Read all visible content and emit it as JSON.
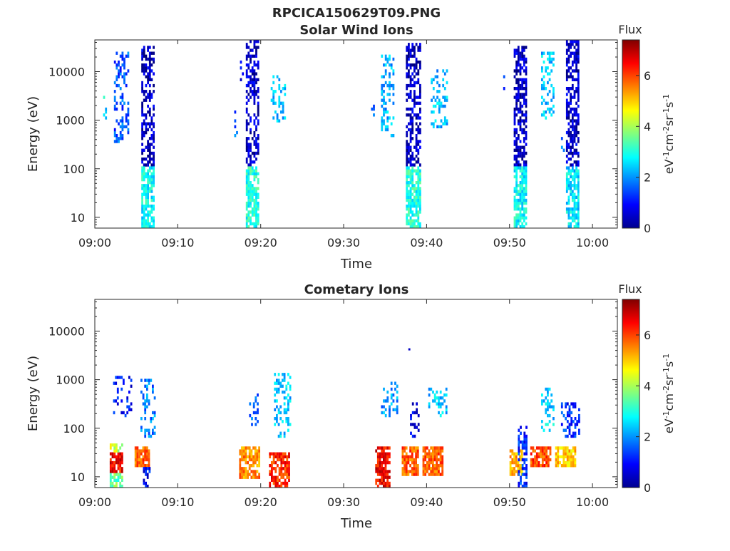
{
  "figure_title": "RPCICA150629T09.PNG",
  "chart_data": [
    {
      "type": "heatmap",
      "title": "Solar Wind Ions",
      "xlabel": "Time",
      "ylabel": "Energy (eV)",
      "x_ticks": [
        "09:00",
        "09:10",
        "09:20",
        "09:30",
        "09:40",
        "09:50",
        "10:00"
      ],
      "x_range_min": [
        0,
        63
      ],
      "y_ticks": [
        "10",
        "100",
        "1000",
        "10000"
      ],
      "y_scale": "log",
      "y_range": [
        6,
        45000
      ],
      "colorbar": {
        "label": "Flux",
        "unit": "eV-1 cm-2 sr-1 s-1",
        "ticks": [
          "0",
          "2",
          "4",
          "6"
        ],
        "range": [
          0,
          7.4
        ],
        "colormap": "jet"
      },
      "bursts": [
        {
          "start_min": 1.0,
          "end_min": 1.4,
          "emin": 1000,
          "emax": 3000,
          "level": 2.6,
          "density": 0.3
        },
        {
          "start_min": 2.3,
          "end_min": 4.0,
          "emin": 300,
          "emax": 25000,
          "level": 1.5,
          "density": 0.35
        },
        {
          "start_min": 5.6,
          "end_min": 7.0,
          "emin": 100,
          "emax": 30000,
          "level": 0.5,
          "density": 0.55
        },
        {
          "start_min": 5.6,
          "end_min": 7.0,
          "emin": 6,
          "emax": 100,
          "level": 2.8,
          "density": 0.75
        },
        {
          "start_min": 16.8,
          "end_min": 17.2,
          "emin": 200,
          "emax": 2000,
          "level": 1.5,
          "density": 0.2
        },
        {
          "start_min": 17.5,
          "end_min": 17.9,
          "emin": 5000,
          "emax": 15000,
          "level": 0.8,
          "density": 0.3
        },
        {
          "start_min": 18.2,
          "end_min": 19.8,
          "emin": 100,
          "emax": 40000,
          "level": 0.5,
          "density": 0.55
        },
        {
          "start_min": 18.2,
          "end_min": 19.8,
          "emin": 6,
          "emax": 100,
          "level": 3.0,
          "density": 0.75
        },
        {
          "start_min": 21.2,
          "end_min": 23.0,
          "emin": 800,
          "emax": 8000,
          "level": 2.4,
          "density": 0.3
        },
        {
          "start_min": 33.3,
          "end_min": 33.6,
          "emin": 1000,
          "emax": 2000,
          "level": 1.8,
          "density": 0.3
        },
        {
          "start_min": 34.5,
          "end_min": 36.0,
          "emin": 400,
          "emax": 20000,
          "level": 2.2,
          "density": 0.35
        },
        {
          "start_min": 37.5,
          "end_min": 39.2,
          "emin": 100,
          "emax": 35000,
          "level": 0.5,
          "density": 0.55
        },
        {
          "start_min": 37.5,
          "end_min": 39.2,
          "emin": 6,
          "emax": 100,
          "level": 3.0,
          "density": 0.75
        },
        {
          "start_min": 40.5,
          "end_min": 42.5,
          "emin": 600,
          "emax": 10000,
          "level": 2.3,
          "density": 0.3
        },
        {
          "start_min": 49.0,
          "end_min": 49.3,
          "emin": 4000,
          "emax": 8000,
          "level": 1.5,
          "density": 0.3
        },
        {
          "start_min": 50.5,
          "end_min": 52.0,
          "emin": 100,
          "emax": 30000,
          "level": 0.5,
          "density": 0.55
        },
        {
          "start_min": 50.5,
          "end_min": 52.0,
          "emin": 6,
          "emax": 100,
          "level": 2.8,
          "density": 0.75
        },
        {
          "start_min": 53.8,
          "end_min": 55.3,
          "emin": 1000,
          "emax": 25000,
          "level": 2.4,
          "density": 0.35
        },
        {
          "start_min": 56.2,
          "end_min": 56.6,
          "emin": 200,
          "emax": 400,
          "level": 2.0,
          "density": 0.3
        },
        {
          "start_min": 56.8,
          "end_min": 58.3,
          "emin": 100,
          "emax": 40000,
          "level": 0.5,
          "density": 0.55
        },
        {
          "start_min": 56.8,
          "end_min": 58.3,
          "emin": 6,
          "emax": 100,
          "level": 2.6,
          "density": 0.7
        }
      ]
    },
    {
      "type": "heatmap",
      "title": "Cometary Ions",
      "xlabel": "Time",
      "ylabel": "Energy (eV)",
      "x_ticks": [
        "09:00",
        "09:10",
        "09:20",
        "09:30",
        "09:40",
        "09:50",
        "10:00"
      ],
      "x_range_min": [
        0,
        63
      ],
      "y_ticks": [
        "10",
        "100",
        "1000",
        "10000"
      ],
      "y_scale": "log",
      "y_range": [
        6,
        45000
      ],
      "colorbar": {
        "label": "Flux",
        "unit": "eV-1 cm-2 sr-1 s-1",
        "ticks": [
          "0",
          "2",
          "4",
          "6"
        ],
        "range": [
          0,
          7.4
        ],
        "colormap": "jet"
      },
      "bursts": [
        {
          "start_min": 1.8,
          "end_min": 3.2,
          "emin": 6,
          "emax": 12,
          "level": 3.5,
          "density": 0.8
        },
        {
          "start_min": 1.8,
          "end_min": 3.2,
          "emin": 12,
          "emax": 30,
          "level": 6.5,
          "density": 0.85
        },
        {
          "start_min": 1.8,
          "end_min": 3.2,
          "emin": 30,
          "emax": 45,
          "level": 4.3,
          "density": 0.6
        },
        {
          "start_min": 2.2,
          "end_min": 4.5,
          "emin": 150,
          "emax": 1100,
          "level": 1.0,
          "density": 0.3
        },
        {
          "start_min": 4.8,
          "end_min": 6.6,
          "emin": 15,
          "emax": 40,
          "level": 5.8,
          "density": 0.85
        },
        {
          "start_min": 5.8,
          "end_min": 6.6,
          "emin": 6,
          "emax": 15,
          "level": 1.0,
          "density": 0.6
        },
        {
          "start_min": 5.5,
          "end_min": 7.2,
          "emin": 60,
          "emax": 1000,
          "level": 1.8,
          "density": 0.3
        },
        {
          "start_min": 17.4,
          "end_min": 19.8,
          "emin": 8,
          "emax": 40,
          "level": 5.5,
          "density": 0.75
        },
        {
          "start_min": 18.6,
          "end_min": 19.6,
          "emin": 100,
          "emax": 500,
          "level": 1.8,
          "density": 0.35
        },
        {
          "start_min": 21.0,
          "end_min": 23.4,
          "emin": 6,
          "emax": 30,
          "level": 6.2,
          "density": 0.7
        },
        {
          "start_min": 21.6,
          "end_min": 23.6,
          "emin": 60,
          "emax": 1200,
          "level": 2.4,
          "density": 0.35
        },
        {
          "start_min": 33.8,
          "end_min": 35.5,
          "emin": 6,
          "emax": 40,
          "level": 6.5,
          "density": 0.8
        },
        {
          "start_min": 34.5,
          "end_min": 36.4,
          "emin": 150,
          "emax": 800,
          "level": 2.0,
          "density": 0.3
        },
        {
          "start_min": 37.0,
          "end_min": 39.0,
          "emin": 10,
          "emax": 40,
          "level": 5.8,
          "density": 0.8
        },
        {
          "start_min": 38.0,
          "end_min": 39.0,
          "emin": 60,
          "emax": 300,
          "level": 0.8,
          "density": 0.4
        },
        {
          "start_min": 39.5,
          "end_min": 42.0,
          "emin": 10,
          "emax": 40,
          "level": 5.8,
          "density": 0.8
        },
        {
          "start_min": 40.2,
          "end_min": 42.3,
          "emin": 150,
          "emax": 600,
          "level": 2.4,
          "density": 0.3
        },
        {
          "start_min": 50.0,
          "end_min": 51.5,
          "emin": 10,
          "emax": 35,
          "level": 5.2,
          "density": 0.8
        },
        {
          "start_min": 51.0,
          "end_min": 52.0,
          "emin": 6,
          "emax": 100,
          "level": 1.2,
          "density": 0.45
        },
        {
          "start_min": 52.5,
          "end_min": 55.0,
          "emin": 15,
          "emax": 40,
          "level": 6.0,
          "density": 0.8
        },
        {
          "start_min": 53.8,
          "end_min": 55.3,
          "emin": 80,
          "emax": 600,
          "level": 2.5,
          "density": 0.35
        },
        {
          "start_min": 55.5,
          "end_min": 58.0,
          "emin": 15,
          "emax": 40,
          "level": 5.0,
          "density": 0.8
        },
        {
          "start_min": 56.2,
          "end_min": 58.4,
          "emin": 60,
          "emax": 300,
          "level": 1.2,
          "density": 0.4
        }
      ],
      "extra_points": [
        {
          "t_min": 37.8,
          "energy": 4000,
          "level": 0.5
        }
      ]
    }
  ]
}
